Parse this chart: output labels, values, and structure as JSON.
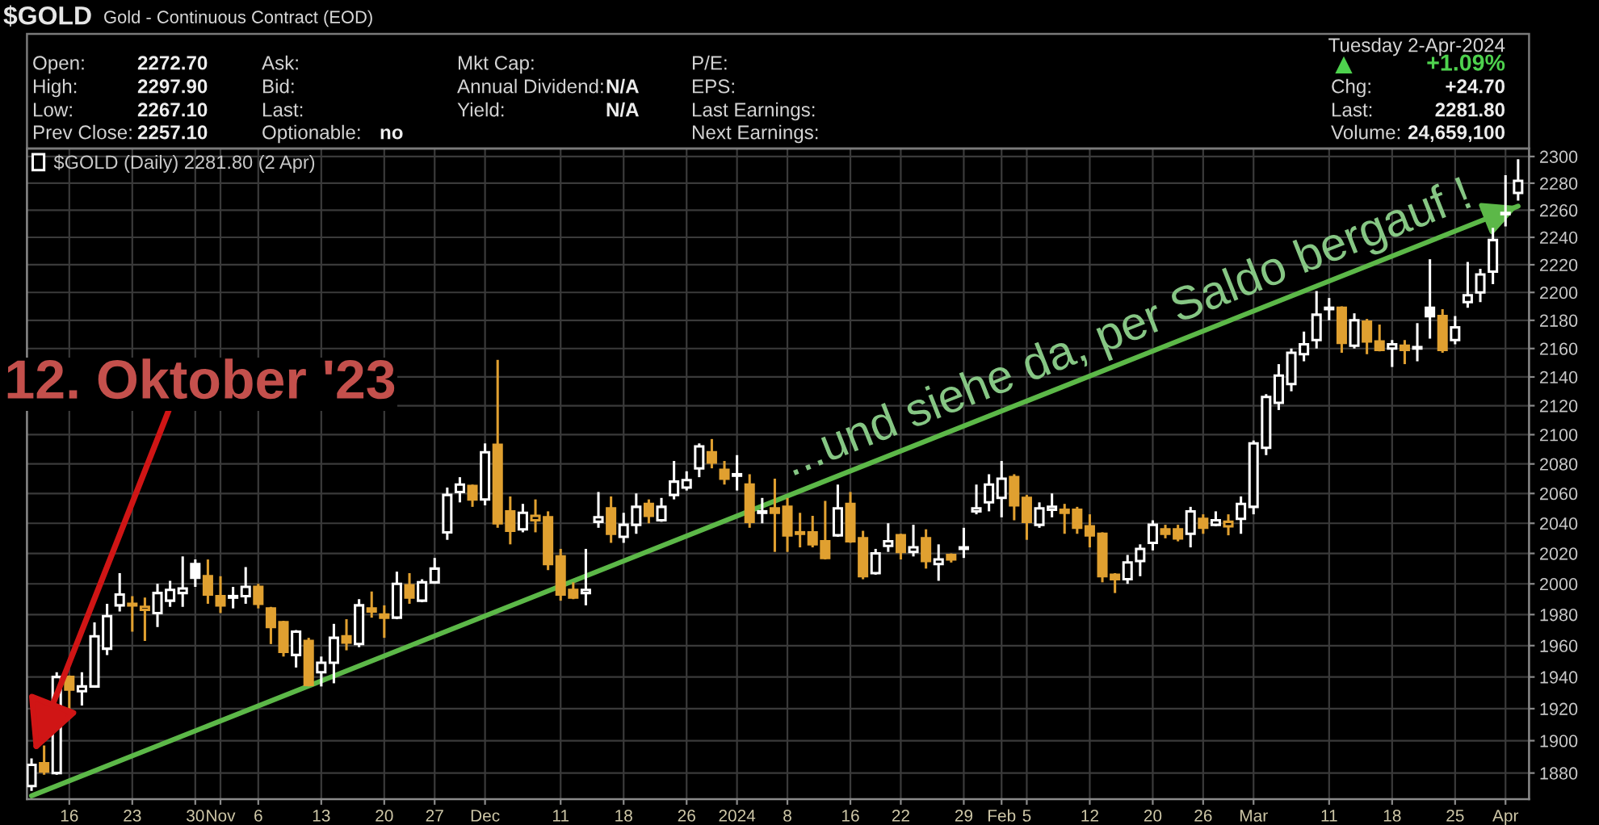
{
  "chart_data": {
    "type": "candlestick",
    "title": "$GOLD",
    "subtitle": "Gold - Continuous Contract (EOD)",
    "categories": [
      null,
      null,
      null,
      "16",
      null,
      null,
      null,
      null,
      "23",
      null,
      null,
      null,
      null,
      "30",
      null,
      "Nov",
      null,
      null,
      "6",
      null,
      null,
      null,
      null,
      "13",
      null,
      null,
      null,
      null,
      "20",
      null,
      null,
      null,
      "27",
      null,
      null,
      null,
      "Dec",
      null,
      null,
      null,
      null,
      null,
      "11",
      null,
      null,
      null,
      null,
      "18",
      null,
      null,
      null,
      null,
      "26",
      null,
      null,
      null,
      "2024",
      null,
      null,
      null,
      "8",
      null,
      null,
      null,
      null,
      "16",
      null,
      null,
      null,
      "22",
      null,
      null,
      null,
      null,
      "29",
      null,
      null,
      "Feb",
      null,
      "5",
      null,
      null,
      null,
      null,
      "12",
      null,
      null,
      null,
      null,
      "20",
      null,
      null,
      null,
      "26",
      null,
      null,
      null,
      "Mar",
      null,
      null,
      null,
      null,
      null,
      "11",
      null,
      null,
      null,
      null,
      "18",
      null,
      null,
      null,
      null,
      "25",
      null,
      null,
      null,
      "Apr",
      null
    ],
    "series": [
      {
        "name": "$GOLD (Daily) 2281.80 (2 Apr)",
        "ohlc": [
          [
            1872,
            1889,
            1869,
            1885
          ],
          [
            1886,
            1897,
            1879,
            1881
          ],
          [
            1880,
            1943,
            1879,
            1940
          ],
          [
            1940,
            1941,
            1919,
            1932
          ],
          [
            1931,
            1943,
            1922,
            1934
          ],
          [
            1934,
            1975,
            1934,
            1966
          ],
          [
            1958,
            1987,
            1954,
            1979
          ],
          [
            1986,
            2007,
            1982,
            1993
          ],
          [
            1987,
            1992,
            1969,
            1986
          ],
          [
            1983,
            1991,
            1963,
            1985
          ],
          [
            1981,
            2000,
            1972,
            1994
          ],
          [
            1989,
            2002,
            1985,
            1996
          ],
          [
            1994,
            2018,
            1985,
            1997
          ],
          [
            2013,
            2016,
            1998,
            2004
          ],
          [
            2005,
            2016,
            1987,
            1993
          ],
          [
            1992,
            2005,
            1981,
            1986
          ],
          [
            1991,
            1998,
            1984,
            1992
          ],
          [
            1992,
            2011,
            1987,
            1998
          ],
          [
            1998,
            2000,
            1984,
            1987
          ],
          [
            1984,
            1985,
            1961,
            1972
          ],
          [
            1975,
            1976,
            1953,
            1956
          ],
          [
            1954,
            1970,
            1946,
            1969
          ],
          [
            1963,
            1965,
            1934,
            1935
          ],
          [
            1943,
            1953,
            1934,
            1949
          ],
          [
            1949,
            1974,
            1936,
            1965
          ],
          [
            1966,
            1977,
            1957,
            1962
          ],
          [
            1961,
            1990,
            1959,
            1986
          ],
          [
            1984,
            1995,
            1978,
            1982
          ],
          [
            1980,
            1986,
            1965,
            1978
          ],
          [
            1978,
            2008,
            1977,
            2000
          ],
          [
            1999,
            2007,
            1987,
            1991
          ],
          [
            1989,
            2003,
            1988,
            2001
          ],
          [
            2001,
            2017,
            2000,
            2010
          ],
          [
            2034,
            2064,
            2029,
            2059
          ],
          [
            2061,
            2071,
            2054,
            2066
          ],
          [
            2065,
            2066,
            2051,
            2056
          ],
          [
            2056,
            2094,
            2052,
            2088
          ],
          [
            2093,
            2152,
            2037,
            2040
          ],
          [
            2048,
            2058,
            2026,
            2035
          ],
          [
            2036,
            2053,
            2034,
            2047
          ],
          [
            2042,
            2056,
            2034,
            2045
          ],
          [
            2044,
            2048,
            2009,
            2013
          ],
          [
            2018,
            2023,
            1989,
            1993
          ],
          [
            1996,
            2001,
            1990,
            1991
          ],
          [
            1994,
            2023,
            1986,
            1996
          ],
          [
            2041,
            2061,
            2037,
            2044
          ],
          [
            2050,
            2058,
            2027,
            2033
          ],
          [
            2031,
            2047,
            2027,
            2039
          ],
          [
            2039,
            2060,
            2033,
            2051
          ],
          [
            2053,
            2056,
            2040,
            2045
          ],
          [
            2042,
            2057,
            2041,
            2051
          ],
          [
            2059,
            2082,
            2056,
            2068
          ],
          [
            2064,
            2075,
            2062,
            2069
          ],
          [
            2077,
            2094,
            2071,
            2092
          ],
          [
            2088,
            2097,
            2077,
            2081
          ],
          [
            2076,
            2082,
            2066,
            2070
          ],
          [
            2072,
            2086,
            2062,
            2073
          ],
          [
            2066,
            2073,
            2037,
            2041
          ],
          [
            2047,
            2057,
            2040,
            2048
          ],
          [
            2050,
            2070,
            2021,
            2047
          ],
          [
            2051,
            2057,
            2021,
            2032
          ],
          [
            2034,
            2047,
            2024,
            2033
          ],
          [
            2034,
            2045,
            2024,
            2026
          ],
          [
            2028,
            2055,
            2016,
            2017
          ],
          [
            2032,
            2066,
            2031,
            2050
          ],
          [
            2053,
            2061,
            2027,
            2028
          ],
          [
            2030,
            2035,
            2003,
            2005
          ],
          [
            2007,
            2023,
            2006,
            2020
          ],
          [
            2025,
            2040,
            2021,
            2028
          ],
          [
            2032,
            2033,
            2016,
            2021
          ],
          [
            2021,
            2039,
            2018,
            2024
          ],
          [
            2030,
            2036,
            2010,
            2015
          ],
          [
            2013,
            2026,
            2002,
            2016
          ],
          [
            2019,
            2020,
            2014,
            2016
          ],
          [
            2023,
            2037,
            2017,
            2024
          ],
          [
            2048,
            2066,
            2046,
            2050
          ],
          [
            2054,
            2073,
            2048,
            2066
          ],
          [
            2057,
            2082,
            2044,
            2070
          ],
          [
            2071,
            2073,
            2042,
            2052
          ],
          [
            2057,
            2059,
            2029,
            2041
          ],
          [
            2039,
            2054,
            2037,
            2050
          ],
          [
            2049,
            2060,
            2044,
            2051
          ],
          [
            2049,
            2053,
            2033,
            2047
          ],
          [
            2049,
            2051,
            2033,
            2037
          ],
          [
            2038,
            2046,
            2024,
            2032
          ],
          [
            2033,
            2034,
            2001,
            2005
          ],
          [
            2006,
            2007,
            1994,
            2003
          ],
          [
            2003,
            2019,
            2000,
            2014
          ],
          [
            2015,
            2026,
            2005,
            2023
          ],
          [
            2027,
            2042,
            2022,
            2039
          ],
          [
            2036,
            2039,
            2030,
            2033
          ],
          [
            2036,
            2039,
            2028,
            2030
          ],
          [
            2033,
            2051,
            2024,
            2048
          ],
          [
            2043,
            2046,
            2033,
            2037
          ],
          [
            2039,
            2048,
            2038,
            2042
          ],
          [
            2038,
            2046,
            2032,
            2041
          ],
          [
            2043,
            2058,
            2033,
            2053
          ],
          [
            2051,
            2096,
            2046,
            2094
          ],
          [
            2091,
            2128,
            2086,
            2126
          ],
          [
            2122,
            2149,
            2117,
            2141
          ],
          [
            2135,
            2160,
            2130,
            2157
          ],
          [
            2156,
            2172,
            2151,
            2163
          ],
          [
            2166,
            2201,
            2160,
            2184
          ],
          [
            2188,
            2196,
            2180,
            2189
          ],
          [
            2189,
            2190,
            2157,
            2164
          ],
          [
            2162,
            2185,
            2160,
            2180
          ],
          [
            2179,
            2181,
            2156,
            2165
          ],
          [
            2165,
            2177,
            2158,
            2159
          ],
          [
            2160,
            2166,
            2147,
            2163
          ],
          [
            2162,
            2166,
            2149,
            2159
          ],
          [
            2160,
            2178,
            2151,
            2161
          ],
          [
            2189,
            2224,
            2167,
            2183
          ],
          [
            2183,
            2188,
            2157,
            2159
          ],
          [
            2166,
            2183,
            2163,
            2175
          ],
          [
            2193,
            2222,
            2189,
            2198
          ],
          [
            2200,
            2217,
            2193,
            2213
          ],
          [
            2215,
            2247,
            2206,
            2238
          ],
          [
            2258,
            2286,
            2248,
            2257.1
          ],
          [
            2272.7,
            2297.9,
            2267.1,
            2281.8
          ]
        ],
        "colors": [
          "#ffffff",
          "#e0a030",
          "#ffffff",
          "#e0a030",
          "#ffffff",
          "#ffffff",
          "#ffffff",
          "#ffffff",
          "#e0a030",
          "#e0a030",
          "#ffffff",
          "#ffffff",
          "#ffffff",
          "#ffffff",
          "#e0a030",
          "#e0a030",
          "#ffffff",
          "#ffffff",
          "#e0a030",
          "#e0a030",
          "#e0a030",
          "#ffffff",
          "#e0a030",
          "#ffffff",
          "#ffffff",
          "#e0a030",
          "#ffffff",
          "#e0a030",
          "#e0a030",
          "#ffffff",
          "#e0a030",
          "#ffffff",
          "#ffffff",
          "#ffffff",
          "#ffffff",
          "#e0a030",
          "#ffffff",
          "#e0a030",
          "#e0a030",
          "#ffffff",
          "#e0a030",
          "#e0a030",
          "#e0a030",
          "#e0a030",
          "#ffffff",
          "#ffffff",
          "#e0a030",
          "#ffffff",
          "#ffffff",
          "#e0a030",
          "#ffffff",
          "#ffffff",
          "#ffffff",
          "#ffffff",
          "#e0a030",
          "#e0a030",
          "#ffffff",
          "#e0a030",
          "#ffffff",
          "#e0a030",
          "#e0a030",
          "#e0a030",
          "#e0a030",
          "#e0a030",
          "#ffffff",
          "#e0a030",
          "#e0a030",
          "#ffffff",
          "#ffffff",
          "#e0a030",
          "#ffffff",
          "#e0a030",
          "#ffffff",
          "#e0a030",
          "#ffffff",
          "#ffffff",
          "#ffffff",
          "#ffffff",
          "#e0a030",
          "#e0a030",
          "#ffffff",
          "#ffffff",
          "#e0a030",
          "#e0a030",
          "#e0a030",
          "#e0a030",
          "#e0a030",
          "#ffffff",
          "#ffffff",
          "#ffffff",
          "#e0a030",
          "#e0a030",
          "#ffffff",
          "#e0a030",
          "#ffffff",
          "#e0a030",
          "#ffffff",
          "#ffffff",
          "#ffffff",
          "#ffffff",
          "#ffffff",
          "#ffffff",
          "#ffffff",
          "#ffffff",
          "#e0a030",
          "#ffffff",
          "#e0a030",
          "#e0a030",
          "#ffffff",
          "#e0a030",
          "#ffffff",
          "#ffffff",
          "#e0a030",
          "#ffffff",
          "#ffffff",
          "#ffffff",
          "#ffffff",
          "#ffffff",
          "#ffffff"
        ]
      },
      {
        "type": "line",
        "color": "#5cb848",
        "values": [
          1866,
          null,
          null,
          null,
          null,
          null,
          null,
          null,
          null,
          null,
          null,
          null,
          null,
          null,
          null,
          null,
          null,
          null,
          null,
          null,
          null,
          null,
          null,
          null,
          null,
          null,
          null,
          null,
          null,
          null,
          null,
          null,
          null,
          null,
          null,
          null,
          null,
          null,
          null,
          null,
          null,
          null,
          null,
          null,
          null,
          null,
          null,
          null,
          null,
          null,
          null,
          null,
          null,
          null,
          null,
          null,
          null,
          null,
          null,
          null,
          null,
          null,
          null,
          null,
          null,
          null,
          null,
          null,
          null,
          null,
          null,
          null,
          null,
          null,
          null,
          null,
          null,
          null,
          null,
          null,
          null,
          null,
          null,
          null,
          null,
          null,
          null,
          null,
          null,
          null,
          null,
          null,
          null,
          null,
          null,
          null,
          null,
          null,
          null,
          null,
          null,
          null,
          null,
          null,
          null,
          null,
          null,
          null,
          null,
          null,
          null,
          null,
          null,
          null,
          null,
          null,
          null,
          null,
          2263
        ]
      }
    ],
    "log": true,
    "ylim": [
      1864,
      2306
    ],
    "yticks": [
      1880,
      1900,
      1920,
      1940,
      1960,
      1980,
      2000,
      2020,
      2040,
      2060,
      2080,
      2100,
      2120,
      2140,
      2160,
      2180,
      2200,
      2220,
      2240,
      2260,
      2280,
      2300
    ],
    "grid": true,
    "legend": "top left",
    "annotations": [
      "12. Oktober '23",
      "...und siehe da, per Saldo bergauf !",
      "Open:",
      "2272.70",
      "High:",
      "2297.90",
      "Low:",
      "2267.10",
      "Prev Close:",
      "2257.10",
      "Ask:",
      "Bid:",
      "Last:",
      "Optionable:",
      "no",
      "Mkt Cap:",
      "Annual Dividend:",
      "N/A",
      "Yield:",
      "N/A",
      "P/E:",
      "EPS:",
      "Last Earnings:",
      "Next Earnings:",
      "Tuesday 2-Apr-2024",
      "▲",
      "+1.09%",
      "Chg:",
      "+24.70",
      "Last:",
      "2281.80",
      "Volume:",
      "24,659,100"
    ]
  }
}
